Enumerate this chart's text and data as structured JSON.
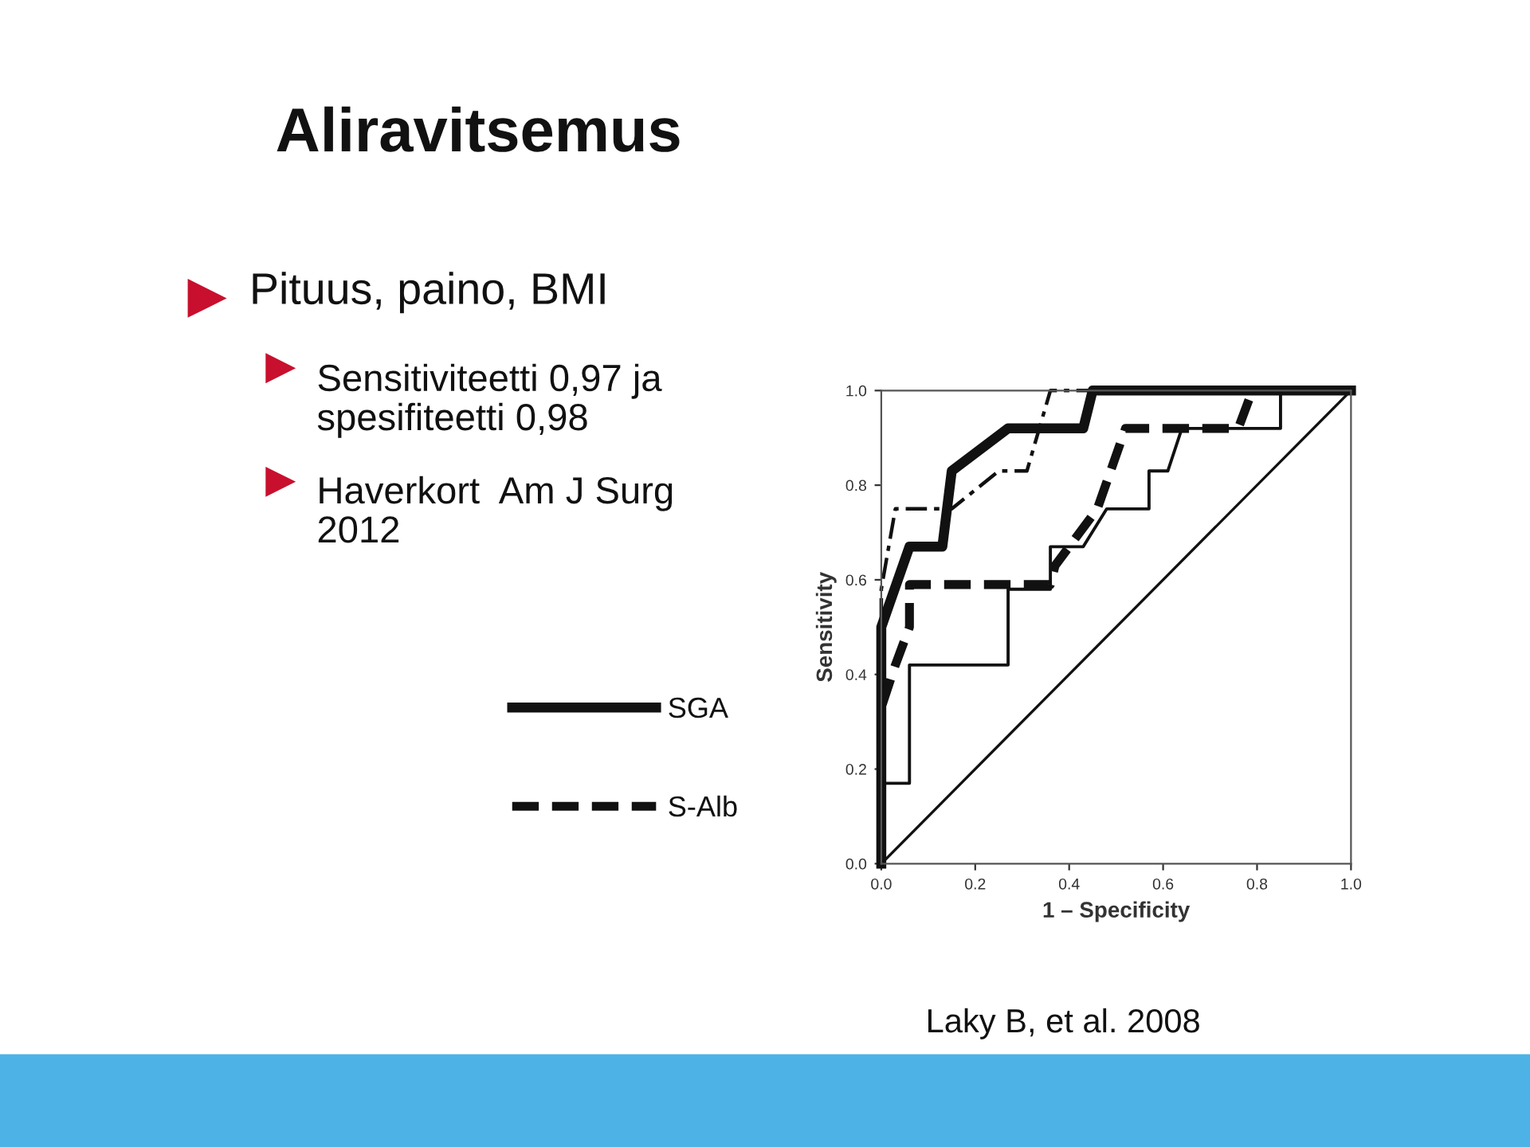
{
  "chart_data": {
    "type": "line",
    "title": "Aliravitsemus",
    "xlabel": "1 – Specificity",
    "ylabel": "Sensitivity",
    "annotations": [
      "Pituus, paino, BMI",
      "Sensitiviteetti 0,97 ja\nspesifiteetti 0,98",
      "Haverkort  Am J Surg\n2012",
      "Laky B, et al. 2008"
    ],
    "series": [
      {
        "name": "SGA",
        "color": "#111111",
        "line_style": "solid",
        "x": [
          0,
          0,
          0.06,
          0.13,
          0.15,
          0.27,
          0.43,
          0.45,
          1
        ],
        "values": [
          0,
          0.5,
          0.67,
          0.67,
          0.83,
          0.92,
          0.92,
          1.0,
          1.0
        ]
      },
      {
        "name": "S-Alb",
        "color": "#111111",
        "line_style": "dashed",
        "x": [
          0,
          0,
          0.03,
          0.06,
          0.06,
          0.36,
          0.37,
          0.4,
          0.46,
          0.52,
          0.76,
          0.79,
          1
        ],
        "values": [
          0,
          0.33,
          0.42,
          0.5,
          0.59,
          0.59,
          0.63,
          0.67,
          0.75,
          0.92,
          0.92,
          1.0,
          1.0
        ]
      },
      {
        "color": "#111111",
        "line_style": "dashdot",
        "x": [
          0,
          0,
          0.03,
          0.15,
          0.25,
          0.31,
          0.36,
          1
        ],
        "values": [
          0,
          0.58,
          0.75,
          0.75,
          0.83,
          0.83,
          1.0,
          1.0
        ]
      },
      {
        "color": "#111111",
        "line_style": "solid",
        "x": [
          0,
          0,
          0.06,
          0.06,
          0.27,
          0.27,
          0.36,
          0.36,
          0.43,
          0.48,
          0.57,
          0.57,
          0.61,
          0.64,
          0.85,
          0.85,
          1
        ],
        "values": [
          0,
          0.17,
          0.17,
          0.42,
          0.42,
          0.58,
          0.58,
          0.67,
          0.67,
          0.75,
          0.75,
          0.83,
          0.83,
          0.92,
          0.92,
          1.0,
          1.0
        ]
      },
      {
        "color": "#111111",
        "line_style": "solid",
        "x": [
          0,
          1
        ],
        "values": [
          0,
          1
        ]
      }
    ],
    "xlim": [
      0,
      1
    ],
    "ylim": [
      0,
      1
    ],
    "xticks": [
      {
        "value": 0,
        "label": "0.0"
      },
      0.2,
      0.4,
      0.6,
      0.8,
      {
        "value": 1,
        "label": "1.0"
      }
    ],
    "yticks": [
      {
        "value": 0,
        "label": "0.0"
      },
      0.2,
      0.4,
      0.6,
      0.8,
      {
        "value": 1,
        "label": "1.0"
      }
    ],
    "grid": false,
    "legend": "left",
    "marker": "none"
  }
}
